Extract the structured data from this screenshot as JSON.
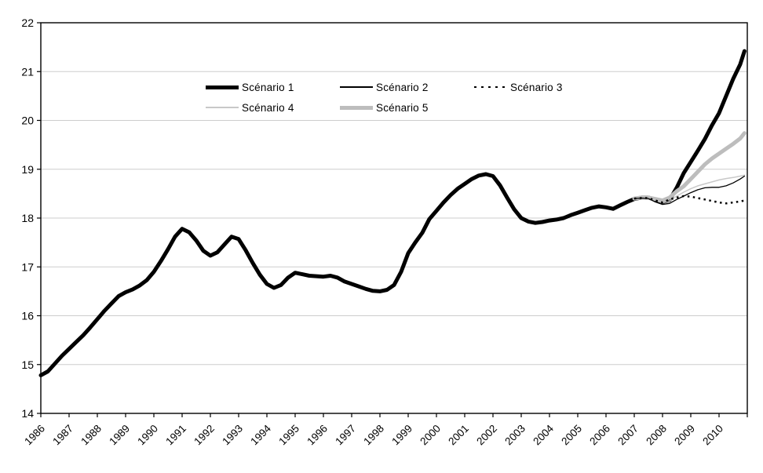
{
  "chart_data": {
    "type": "line",
    "title": "",
    "xlabel": "",
    "ylabel": "",
    "background": "#ffffff",
    "frame_color": "#000000",
    "gridline_color": "#cdcdcd",
    "grid": true,
    "x_axis": {
      "range": [
        1986,
        2011
      ],
      "labels": [
        "1986",
        "1987",
        "1988",
        "1989",
        "1990",
        "1991",
        "1992",
        "1993",
        "1994",
        "1995",
        "1996",
        "1997",
        "1998",
        "1999",
        "2000",
        "2001",
        "2002",
        "2003",
        "2004",
        "2005",
        "2006",
        "2007",
        "2008",
        "2009",
        "2010"
      ],
      "label_rotation_deg": -45
    },
    "y_axis": {
      "range": [
        14,
        22
      ],
      "ticks": [
        14,
        15,
        16,
        17,
        18,
        19,
        20,
        21,
        22
      ]
    },
    "legend": {
      "position": "top-center-inside",
      "rows": [
        [
          0,
          1,
          2
        ],
        [
          3,
          4
        ]
      ]
    },
    "draw_order": [
      0,
      4,
      3,
      1,
      2
    ],
    "series": [
      {
        "name": "Scénario 1",
        "color": "#000000",
        "width": 5,
        "dash": null,
        "points": [
          [
            1986.0,
            14.78
          ],
          [
            1986.25,
            14.86
          ],
          [
            1986.5,
            15.02
          ],
          [
            1986.75,
            15.18
          ],
          [
            1987.0,
            15.32
          ],
          [
            1987.25,
            15.46
          ],
          [
            1987.5,
            15.6
          ],
          [
            1987.75,
            15.76
          ],
          [
            1988.0,
            15.93
          ],
          [
            1988.25,
            16.1
          ],
          [
            1988.5,
            16.25
          ],
          [
            1988.75,
            16.4
          ],
          [
            1989.0,
            16.48
          ],
          [
            1989.25,
            16.54
          ],
          [
            1989.5,
            16.62
          ],
          [
            1989.75,
            16.73
          ],
          [
            1990.0,
            16.9
          ],
          [
            1990.25,
            17.12
          ],
          [
            1990.5,
            17.36
          ],
          [
            1990.75,
            17.62
          ],
          [
            1991.0,
            17.78
          ],
          [
            1991.25,
            17.71
          ],
          [
            1991.5,
            17.54
          ],
          [
            1991.75,
            17.33
          ],
          [
            1992.0,
            17.23
          ],
          [
            1992.25,
            17.3
          ],
          [
            1992.5,
            17.46
          ],
          [
            1992.75,
            17.62
          ],
          [
            1993.0,
            17.57
          ],
          [
            1993.25,
            17.34
          ],
          [
            1993.5,
            17.08
          ],
          [
            1993.75,
            16.84
          ],
          [
            1994.0,
            16.65
          ],
          [
            1994.25,
            16.57
          ],
          [
            1994.5,
            16.63
          ],
          [
            1994.75,
            16.78
          ],
          [
            1995.0,
            16.88
          ],
          [
            1995.25,
            16.85
          ],
          [
            1995.5,
            16.82
          ],
          [
            1995.75,
            16.81
          ],
          [
            1996.0,
            16.8
          ],
          [
            1996.25,
            16.82
          ],
          [
            1996.5,
            16.78
          ],
          [
            1996.75,
            16.7
          ],
          [
            1997.0,
            16.65
          ],
          [
            1997.25,
            16.6
          ],
          [
            1997.5,
            16.55
          ],
          [
            1997.75,
            16.51
          ],
          [
            1998.0,
            16.5
          ],
          [
            1998.25,
            16.53
          ],
          [
            1998.5,
            16.63
          ],
          [
            1998.75,
            16.9
          ],
          [
            1999.0,
            17.28
          ],
          [
            1999.25,
            17.5
          ],
          [
            1999.5,
            17.7
          ],
          [
            1999.75,
            17.98
          ],
          [
            2000.0,
            18.15
          ],
          [
            2000.25,
            18.32
          ],
          [
            2000.5,
            18.47
          ],
          [
            2000.75,
            18.6
          ],
          [
            2001.0,
            18.7
          ],
          [
            2001.25,
            18.8
          ],
          [
            2001.5,
            18.87
          ],
          [
            2001.75,
            18.9
          ],
          [
            2002.0,
            18.86
          ],
          [
            2002.25,
            18.67
          ],
          [
            2002.5,
            18.42
          ],
          [
            2002.75,
            18.18
          ],
          [
            2003.0,
            18.0
          ],
          [
            2003.25,
            17.93
          ],
          [
            2003.5,
            17.9
          ],
          [
            2003.75,
            17.92
          ],
          [
            2004.0,
            17.95
          ],
          [
            2004.25,
            17.97
          ],
          [
            2004.5,
            18.0
          ],
          [
            2004.75,
            18.06
          ],
          [
            2005.0,
            18.11
          ],
          [
            2005.25,
            18.16
          ],
          [
            2005.5,
            18.21
          ],
          [
            2005.75,
            18.24
          ],
          [
            2006.0,
            18.22
          ],
          [
            2006.25,
            18.19
          ],
          [
            2006.5,
            18.26
          ],
          [
            2006.75,
            18.33
          ],
          [
            2007.0,
            18.39
          ],
          [
            2007.25,
            18.42
          ],
          [
            2007.5,
            18.42
          ],
          [
            2007.75,
            18.38
          ],
          [
            2008.0,
            18.33
          ],
          [
            2008.25,
            18.37
          ],
          [
            2008.5,
            18.62
          ],
          [
            2008.75,
            18.92
          ],
          [
            2009.0,
            19.15
          ],
          [
            2009.25,
            19.38
          ],
          [
            2009.5,
            19.62
          ],
          [
            2009.75,
            19.9
          ],
          [
            2010.0,
            20.15
          ],
          [
            2010.25,
            20.5
          ],
          [
            2010.5,
            20.85
          ],
          [
            2010.75,
            21.15
          ],
          [
            2010.9,
            21.42
          ]
        ]
      },
      {
        "name": "Scénario 2",
        "color": "#000000",
        "width": 1.3,
        "dash": null,
        "points": [
          [
            2007.0,
            18.4
          ],
          [
            2007.25,
            18.41
          ],
          [
            2007.5,
            18.4
          ],
          [
            2007.75,
            18.33
          ],
          [
            2008.0,
            18.28
          ],
          [
            2008.25,
            18.3
          ],
          [
            2008.5,
            18.38
          ],
          [
            2008.75,
            18.45
          ],
          [
            2009.0,
            18.52
          ],
          [
            2009.25,
            18.58
          ],
          [
            2009.5,
            18.62
          ],
          [
            2009.75,
            18.63
          ],
          [
            2010.0,
            18.63
          ],
          [
            2010.25,
            18.66
          ],
          [
            2010.5,
            18.72
          ],
          [
            2010.75,
            18.8
          ],
          [
            2010.9,
            18.86
          ]
        ]
      },
      {
        "name": "Scénario 3",
        "color": "#000000",
        "width": 2.5,
        "dash": "2.5 4.5",
        "points": [
          [
            2007.0,
            18.4
          ],
          [
            2007.25,
            18.41
          ],
          [
            2007.5,
            18.41
          ],
          [
            2007.75,
            18.36
          ],
          [
            2008.0,
            18.32
          ],
          [
            2008.25,
            18.38
          ],
          [
            2008.5,
            18.42
          ],
          [
            2008.75,
            18.45
          ],
          [
            2009.0,
            18.44
          ],
          [
            2009.25,
            18.41
          ],
          [
            2009.5,
            18.38
          ],
          [
            2009.75,
            18.35
          ],
          [
            2010.0,
            18.32
          ],
          [
            2010.25,
            18.3
          ],
          [
            2010.5,
            18.32
          ],
          [
            2010.75,
            18.34
          ],
          [
            2010.9,
            18.36
          ]
        ]
      },
      {
        "name": "Scénario 4",
        "color": "#c8c8c8",
        "width": 1.5,
        "dash": null,
        "points": [
          [
            2007.0,
            18.4
          ],
          [
            2007.25,
            18.41
          ],
          [
            2007.5,
            18.41
          ],
          [
            2007.75,
            18.36
          ],
          [
            2008.0,
            18.31
          ],
          [
            2008.25,
            18.35
          ],
          [
            2008.5,
            18.45
          ],
          [
            2008.75,
            18.53
          ],
          [
            2009.0,
            18.6
          ],
          [
            2009.25,
            18.66
          ],
          [
            2009.5,
            18.7
          ],
          [
            2009.75,
            18.74
          ],
          [
            2010.0,
            18.78
          ],
          [
            2010.25,
            18.81
          ],
          [
            2010.5,
            18.83
          ],
          [
            2010.75,
            18.86
          ],
          [
            2010.9,
            18.88
          ]
        ]
      },
      {
        "name": "Scénario 5",
        "color": "#bdbdbd",
        "width": 5,
        "dash": null,
        "points": [
          [
            2007.0,
            18.4
          ],
          [
            2007.25,
            18.42
          ],
          [
            2007.5,
            18.42
          ],
          [
            2007.75,
            18.39
          ],
          [
            2008.0,
            18.36
          ],
          [
            2008.25,
            18.42
          ],
          [
            2008.5,
            18.55
          ],
          [
            2008.75,
            18.65
          ],
          [
            2009.0,
            18.8
          ],
          [
            2009.25,
            18.95
          ],
          [
            2009.5,
            19.1
          ],
          [
            2009.75,
            19.22
          ],
          [
            2010.0,
            19.32
          ],
          [
            2010.25,
            19.42
          ],
          [
            2010.5,
            19.52
          ],
          [
            2010.75,
            19.63
          ],
          [
            2010.9,
            19.74
          ]
        ]
      }
    ]
  }
}
